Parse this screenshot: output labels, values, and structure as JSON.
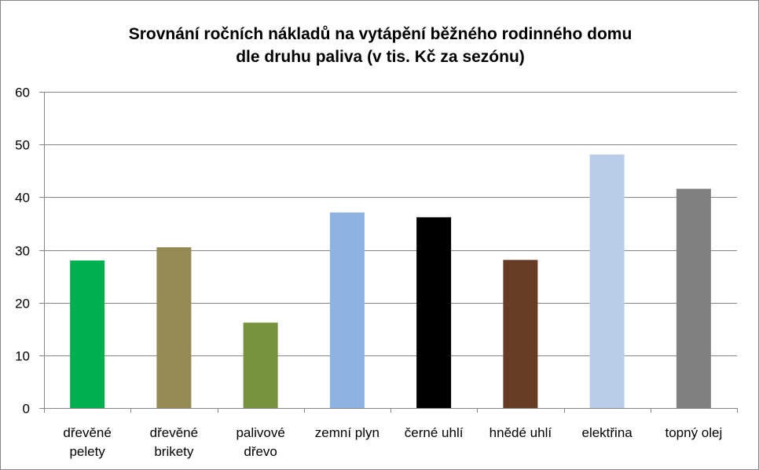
{
  "chart_data": {
    "type": "bar",
    "title_lines": [
      "Srovnání ročních nákladů na vytápění běžného rodinného domu",
      "dle druhu paliva (v tis. Kč za sezónu)"
    ],
    "categories": [
      [
        "dřevěné",
        "pelety"
      ],
      [
        "dřevěné",
        "brikety"
      ],
      [
        "palivové",
        "dřevo"
      ],
      [
        "zemní plyn"
      ],
      [
        "černé uhlí"
      ],
      [
        "hnědé uhlí"
      ],
      [
        "elektřina"
      ],
      [
        "topný olej"
      ]
    ],
    "values": [
      28,
      30.5,
      16.2,
      37.1,
      36.2,
      28.1,
      48.1,
      41.6
    ],
    "colors": [
      "#00b050",
      "#948a54",
      "#77933c",
      "#8db3e2",
      "#000000",
      "#663c24",
      "#b9cde8",
      "#808080"
    ],
    "yticks": [
      0,
      10,
      20,
      30,
      40,
      50,
      60
    ],
    "ylim": [
      0,
      60
    ],
    "grid": true,
    "legend": "none"
  }
}
